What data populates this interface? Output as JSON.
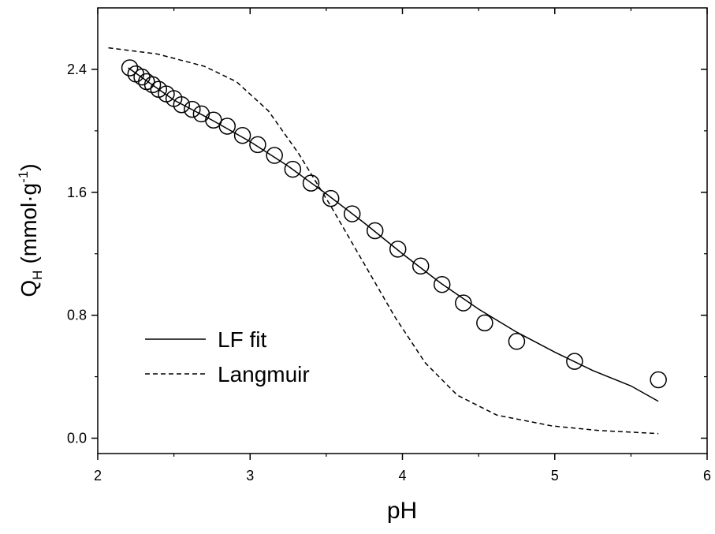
{
  "chart_data": {
    "type": "scatter",
    "x_label": "pH",
    "y_label": {
      "symbol": "Q",
      "subscript": "H",
      "unit": "(mmol·g",
      "superscript": "-1",
      "close": ")"
    },
    "xlim": [
      2,
      6
    ],
    "xticks": [
      2,
      3,
      4,
      5,
      6
    ],
    "ylim": [
      -0.1,
      2.8
    ],
    "yticks": [
      {
        "value": 0,
        "label": "0.0"
      },
      {
        "value": 0.8,
        "label": "0.8"
      },
      {
        "value": 1.6,
        "label": "1.6"
      },
      {
        "value": 2.4,
        "label": "2.4"
      }
    ],
    "legend": "lower left",
    "series": [
      {
        "style": "markers",
        "color": "#000000",
        "x": [
          2.21,
          2.25,
          2.29,
          2.32,
          2.36,
          2.4,
          2.45,
          2.5,
          2.55,
          2.62,
          2.68,
          2.76,
          2.85,
          2.95,
          3.05,
          3.16,
          3.28,
          3.4,
          3.53,
          3.67,
          3.82,
          3.97,
          4.12,
          4.26,
          4.4,
          4.54,
          4.75,
          5.13,
          5.68
        ],
        "values": [
          2.41,
          2.37,
          2.35,
          2.32,
          2.3,
          2.27,
          2.24,
          2.21,
          2.17,
          2.14,
          2.11,
          2.07,
          2.03,
          1.97,
          1.91,
          1.84,
          1.75,
          1.66,
          1.56,
          1.46,
          1.35,
          1.23,
          1.12,
          1.0,
          0.88,
          0.75,
          0.63,
          0.5,
          0.38
        ]
      },
      {
        "name": "LF fit",
        "style": "solid",
        "color": "#000000",
        "x": [
          2.2,
          2.5,
          2.75,
          3.0,
          3.25,
          3.5,
          3.75,
          4.0,
          4.25,
          4.5,
          4.75,
          5.0,
          5.25,
          5.5,
          5.68
        ],
        "values": [
          2.41,
          2.2,
          2.07,
          1.93,
          1.77,
          1.59,
          1.4,
          1.2,
          1.01,
          0.84,
          0.69,
          0.56,
          0.44,
          0.34,
          0.24
        ]
      },
      {
        "name": "Langmuir",
        "style": "dashed",
        "color": "#000000",
        "x": [
          2.07,
          2.39,
          2.7,
          2.91,
          3.12,
          3.32,
          3.53,
          3.74,
          3.95,
          4.15,
          4.36,
          4.62,
          4.98,
          5.29,
          5.68
        ],
        "values": [
          2.54,
          2.5,
          2.42,
          2.32,
          2.13,
          1.85,
          1.51,
          1.15,
          0.79,
          0.49,
          0.28,
          0.15,
          0.08,
          0.05,
          0.03
        ]
      }
    ]
  }
}
